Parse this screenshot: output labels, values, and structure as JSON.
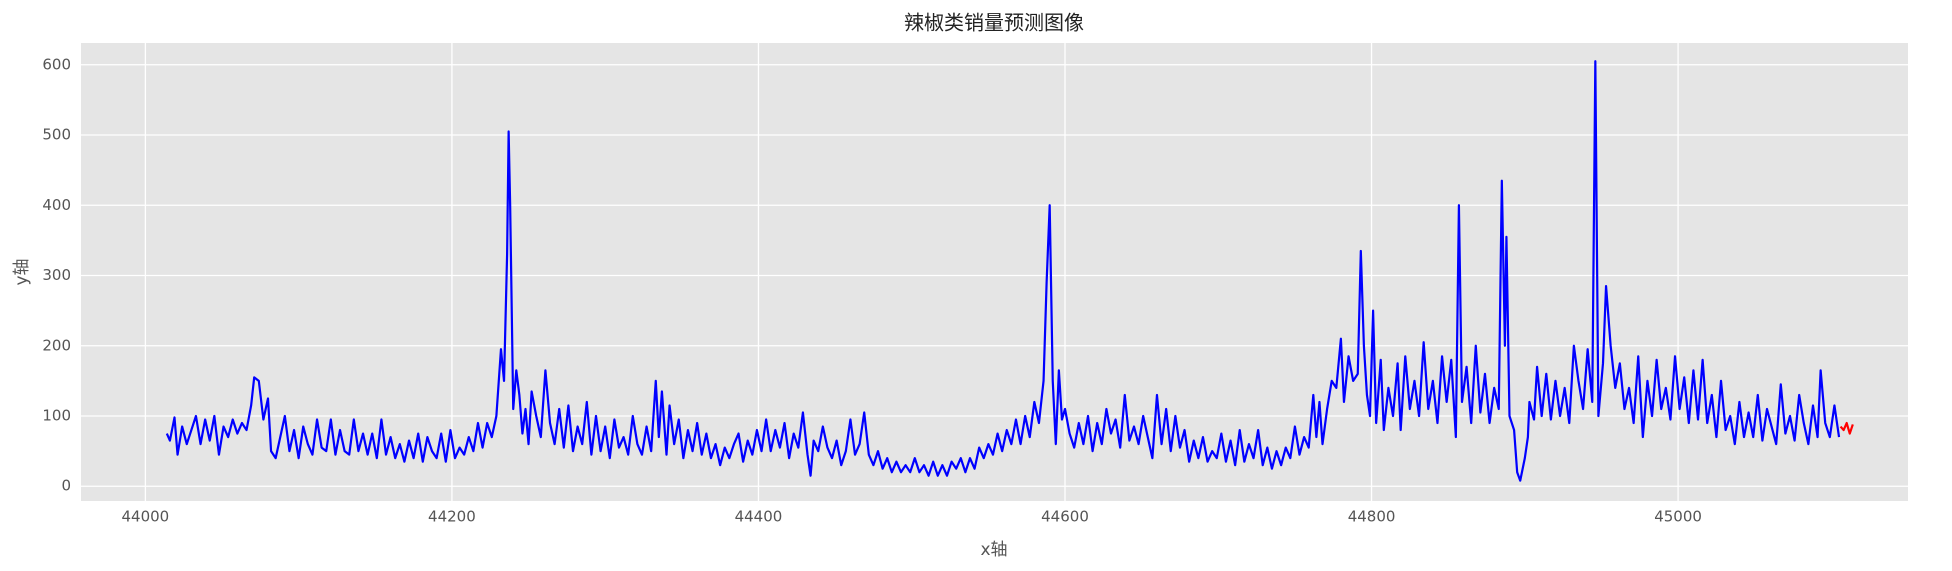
{
  "chart_data": {
    "type": "line",
    "title": "辣椒类销量预测图像",
    "x_label": "x轴",
    "y_label": "y轴",
    "xlim": [
      43958,
      45150
    ],
    "ylim": [
      -21,
      631
    ],
    "xticks": [
      44000,
      44200,
      44400,
      44600,
      44800,
      45000
    ],
    "yticks": [
      0,
      100,
      200,
      300,
      400,
      500,
      600
    ],
    "grid": true,
    "series": [
      {
        "color": "#0000ff",
        "x": [
          44014,
          44016,
          44019,
          44021,
          44024,
          44027,
          44030,
          44033,
          44036,
          44039,
          44042,
          44045,
          44048,
          44051,
          44054,
          44057,
          44060,
          44063,
          44066,
          44069,
          44071,
          44074,
          44077,
          44080,
          44082,
          44085,
          44088,
          44091,
          44094,
          44097,
          44100,
          44103,
          44106,
          44109,
          44112,
          44115,
          44118,
          44121,
          44124,
          44127,
          44130,
          44133,
          44136,
          44139,
          44142,
          44145,
          44148,
          44151,
          44154,
          44157,
          44160,
          44163,
          44166,
          44169,
          44172,
          44175,
          44178,
          44181,
          44184,
          44187,
          44190,
          44193,
          44196,
          44199,
          44202,
          44205,
          44208,
          44211,
          44214,
          44217,
          44220,
          44223,
          44226,
          44229,
          44232,
          44234,
          44236,
          44237,
          44238,
          44240,
          44242,
          44244,
          44246,
          44248,
          44250,
          44252,
          44255,
          44258,
          44261,
          44264,
          44267,
          44270,
          44273,
          44276,
          44279,
          44282,
          44285,
          44288,
          44291,
          44294,
          44297,
          44300,
          44303,
          44306,
          44309,
          44312,
          44315,
          44318,
          44321,
          44324,
          44327,
          44330,
          44333,
          44335,
          44337,
          44340,
          44342,
          44345,
          44348,
          44351,
          44354,
          44357,
          44360,
          44363,
          44366,
          44369,
          44372,
          44375,
          44378,
          44381,
          44384,
          44387,
          44390,
          44393,
          44396,
          44399,
          44402,
          44405,
          44408,
          44411,
          44414,
          44417,
          44420,
          44423,
          44426,
          44429,
          44432,
          44434,
          44436,
          44439,
          44442,
          44445,
          44448,
          44451,
          44454,
          44457,
          44460,
          44463,
          44466,
          44469,
          44472,
          44475,
          44478,
          44481,
          44484,
          44487,
          44490,
          44493,
          44496,
          44499,
          44502,
          44505,
          44508,
          44511,
          44514,
          44517,
          44520,
          44523,
          44526,
          44529,
          44532,
          44535,
          44538,
          44541,
          44544,
          44547,
          44550,
          44553,
          44556,
          44559,
          44562,
          44565,
          44568,
          44571,
          44574,
          44577,
          44580,
          44583,
          44586,
          44588,
          44590,
          44592,
          44594,
          44596,
          44598,
          44600,
          44603,
          44606,
          44609,
          44612,
          44615,
          44618,
          44621,
          44624,
          44627,
          44630,
          44633,
          44636,
          44639,
          44642,
          44645,
          44648,
          44651,
          44654,
          44657,
          44660,
          44663,
          44666,
          44669,
          44672,
          44675,
          44678,
          44681,
          44684,
          44687,
          44690,
          44693,
          44696,
          44699,
          44702,
          44705,
          44708,
          44711,
          44714,
          44717,
          44720,
          44723,
          44726,
          44729,
          44732,
          44735,
          44738,
          44741,
          44744,
          44747,
          44750,
          44753,
          44756,
          44759,
          44762,
          44764,
          44766,
          44768,
          44771,
          44774,
          44777,
          44780,
          44782,
          44785,
          44788,
          44791,
          44793,
          44795,
          44797,
          44799,
          44801,
          44803,
          44806,
          44808,
          44811,
          44814,
          44817,
          44819,
          44822,
          44825,
          44828,
          44831,
          44834,
          44837,
          44840,
          44843,
          44846,
          44849,
          44852,
          44855,
          44857,
          44859,
          44862,
          44865,
          44868,
          44871,
          44874,
          44877,
          44880,
          44883,
          44885,
          44887,
          44888,
          44890,
          44893,
          44895,
          44897,
          44900,
          44902,
          44903,
          44906,
          44908,
          44911,
          44914,
          44917,
          44920,
          44923,
          44926,
          44929,
          44932,
          44935,
          44938,
          44941,
          44944,
          44946,
          44948,
          44951,
          44953,
          44956,
          44959,
          44962,
          44965,
          44968,
          44971,
          44974,
          44977,
          44980,
          44983,
          44986,
          44989,
          44992,
          44995,
          44998,
          45001,
          45004,
          45007,
          45010,
          45013,
          45016,
          45019,
          45022,
          45025,
          45028,
          45031,
          45034,
          45037,
          45040,
          45043,
          45046,
          45049,
          45052,
          45055,
          45058,
          45061,
          45064,
          45067,
          45070,
          45073,
          45076,
          45079,
          45082,
          45085,
          45088,
          45091,
          45093,
          45096,
          45099,
          45102,
          45105
        ],
        "values": [
          75,
          65,
          98,
          45,
          85,
          60,
          80,
          100,
          60,
          95,
          65,
          100,
          45,
          85,
          70,
          95,
          75,
          90,
          80,
          115,
          155,
          150,
          95,
          125,
          50,
          40,
          70,
          100,
          50,
          80,
          40,
          85,
          60,
          45,
          95,
          55,
          50,
          95,
          45,
          80,
          50,
          45,
          95,
          50,
          75,
          45,
          75,
          40,
          95,
          45,
          70,
          40,
          60,
          35,
          65,
          40,
          75,
          35,
          70,
          50,
          40,
          75,
          35,
          80,
          40,
          55,
          45,
          70,
          50,
          90,
          55,
          90,
          70,
          100,
          195,
          150,
          330,
          505,
          400,
          110,
          165,
          130,
          75,
          110,
          60,
          135,
          100,
          70,
          165,
          90,
          60,
          110,
          55,
          115,
          50,
          85,
          60,
          120,
          45,
          100,
          50,
          85,
          40,
          95,
          55,
          70,
          45,
          100,
          60,
          45,
          85,
          50,
          150,
          70,
          135,
          45,
          115,
          60,
          95,
          40,
          80,
          50,
          90,
          45,
          75,
          40,
          60,
          30,
          55,
          40,
          60,
          75,
          35,
          65,
          45,
          80,
          50,
          95,
          50,
          80,
          55,
          90,
          40,
          75,
          55,
          105,
          45,
          15,
          65,
          50,
          85,
          55,
          40,
          65,
          30,
          50,
          95,
          45,
          60,
          105,
          45,
          30,
          50,
          25,
          40,
          20,
          35,
          20,
          30,
          20,
          40,
          20,
          30,
          15,
          35,
          15,
          30,
          15,
          35,
          25,
          40,
          20,
          40,
          25,
          55,
          40,
          60,
          45,
          75,
          50,
          80,
          60,
          95,
          60,
          100,
          70,
          120,
          90,
          150,
          290,
          400,
          150,
          60,
          165,
          95,
          110,
          75,
          55,
          90,
          60,
          100,
          50,
          90,
          60,
          110,
          75,
          95,
          55,
          130,
          65,
          85,
          60,
          100,
          70,
          40,
          130,
          60,
          110,
          50,
          100,
          55,
          80,
          35,
          65,
          40,
          70,
          35,
          50,
          40,
          75,
          35,
          65,
          30,
          80,
          35,
          60,
          40,
          80,
          30,
          55,
          25,
          50,
          30,
          55,
          40,
          85,
          45,
          70,
          55,
          130,
          70,
          120,
          60,
          110,
          150,
          140,
          210,
          120,
          185,
          150,
          160,
          335,
          200,
          130,
          100,
          250,
          90,
          180,
          80,
          140,
          100,
          175,
          80,
          185,
          110,
          150,
          100,
          205,
          110,
          150,
          90,
          185,
          120,
          180,
          70,
          400,
          120,
          170,
          90,
          200,
          105,
          160,
          90,
          140,
          110,
          435,
          200,
          355,
          100,
          80,
          20,
          8,
          40,
          70,
          120,
          95,
          170,
          100,
          160,
          95,
          150,
          100,
          140,
          90,
          200,
          150,
          110,
          195,
          120,
          605,
          100,
          175,
          285,
          200,
          140,
          175,
          110,
          140,
          90,
          185,
          70,
          150,
          100,
          180,
          110,
          140,
          95,
          185,
          110,
          155,
          90,
          165,
          95,
          180,
          90,
          130,
          70,
          150,
          80,
          100,
          60,
          120,
          70,
          105,
          70,
          130,
          65,
          110,
          85,
          60,
          145,
          75,
          100,
          65,
          130,
          90,
          60,
          115,
          70,
          165,
          90,
          70,
          115,
          70
        ]
      },
      {
        "color": "#ff0000",
        "x": [
          45106,
          45108,
          45110,
          45112,
          45114
        ],
        "values": [
          85,
          80,
          90,
          75,
          88
        ]
      }
    ]
  }
}
